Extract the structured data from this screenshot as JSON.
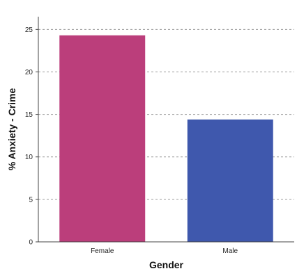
{
  "chart_data": {
    "type": "bar",
    "categories": [
      "Female",
      "Male"
    ],
    "values": [
      24.3,
      14.4
    ],
    "colors": [
      "#bb3e7b",
      "#3f58ad"
    ],
    "title": "",
    "xlabel": "Gender",
    "ylabel": "% Anxiety - Crime",
    "ylim": [
      0,
      26.5
    ],
    "yticks": [
      0,
      5,
      10,
      15,
      20,
      25
    ],
    "grid": true
  }
}
